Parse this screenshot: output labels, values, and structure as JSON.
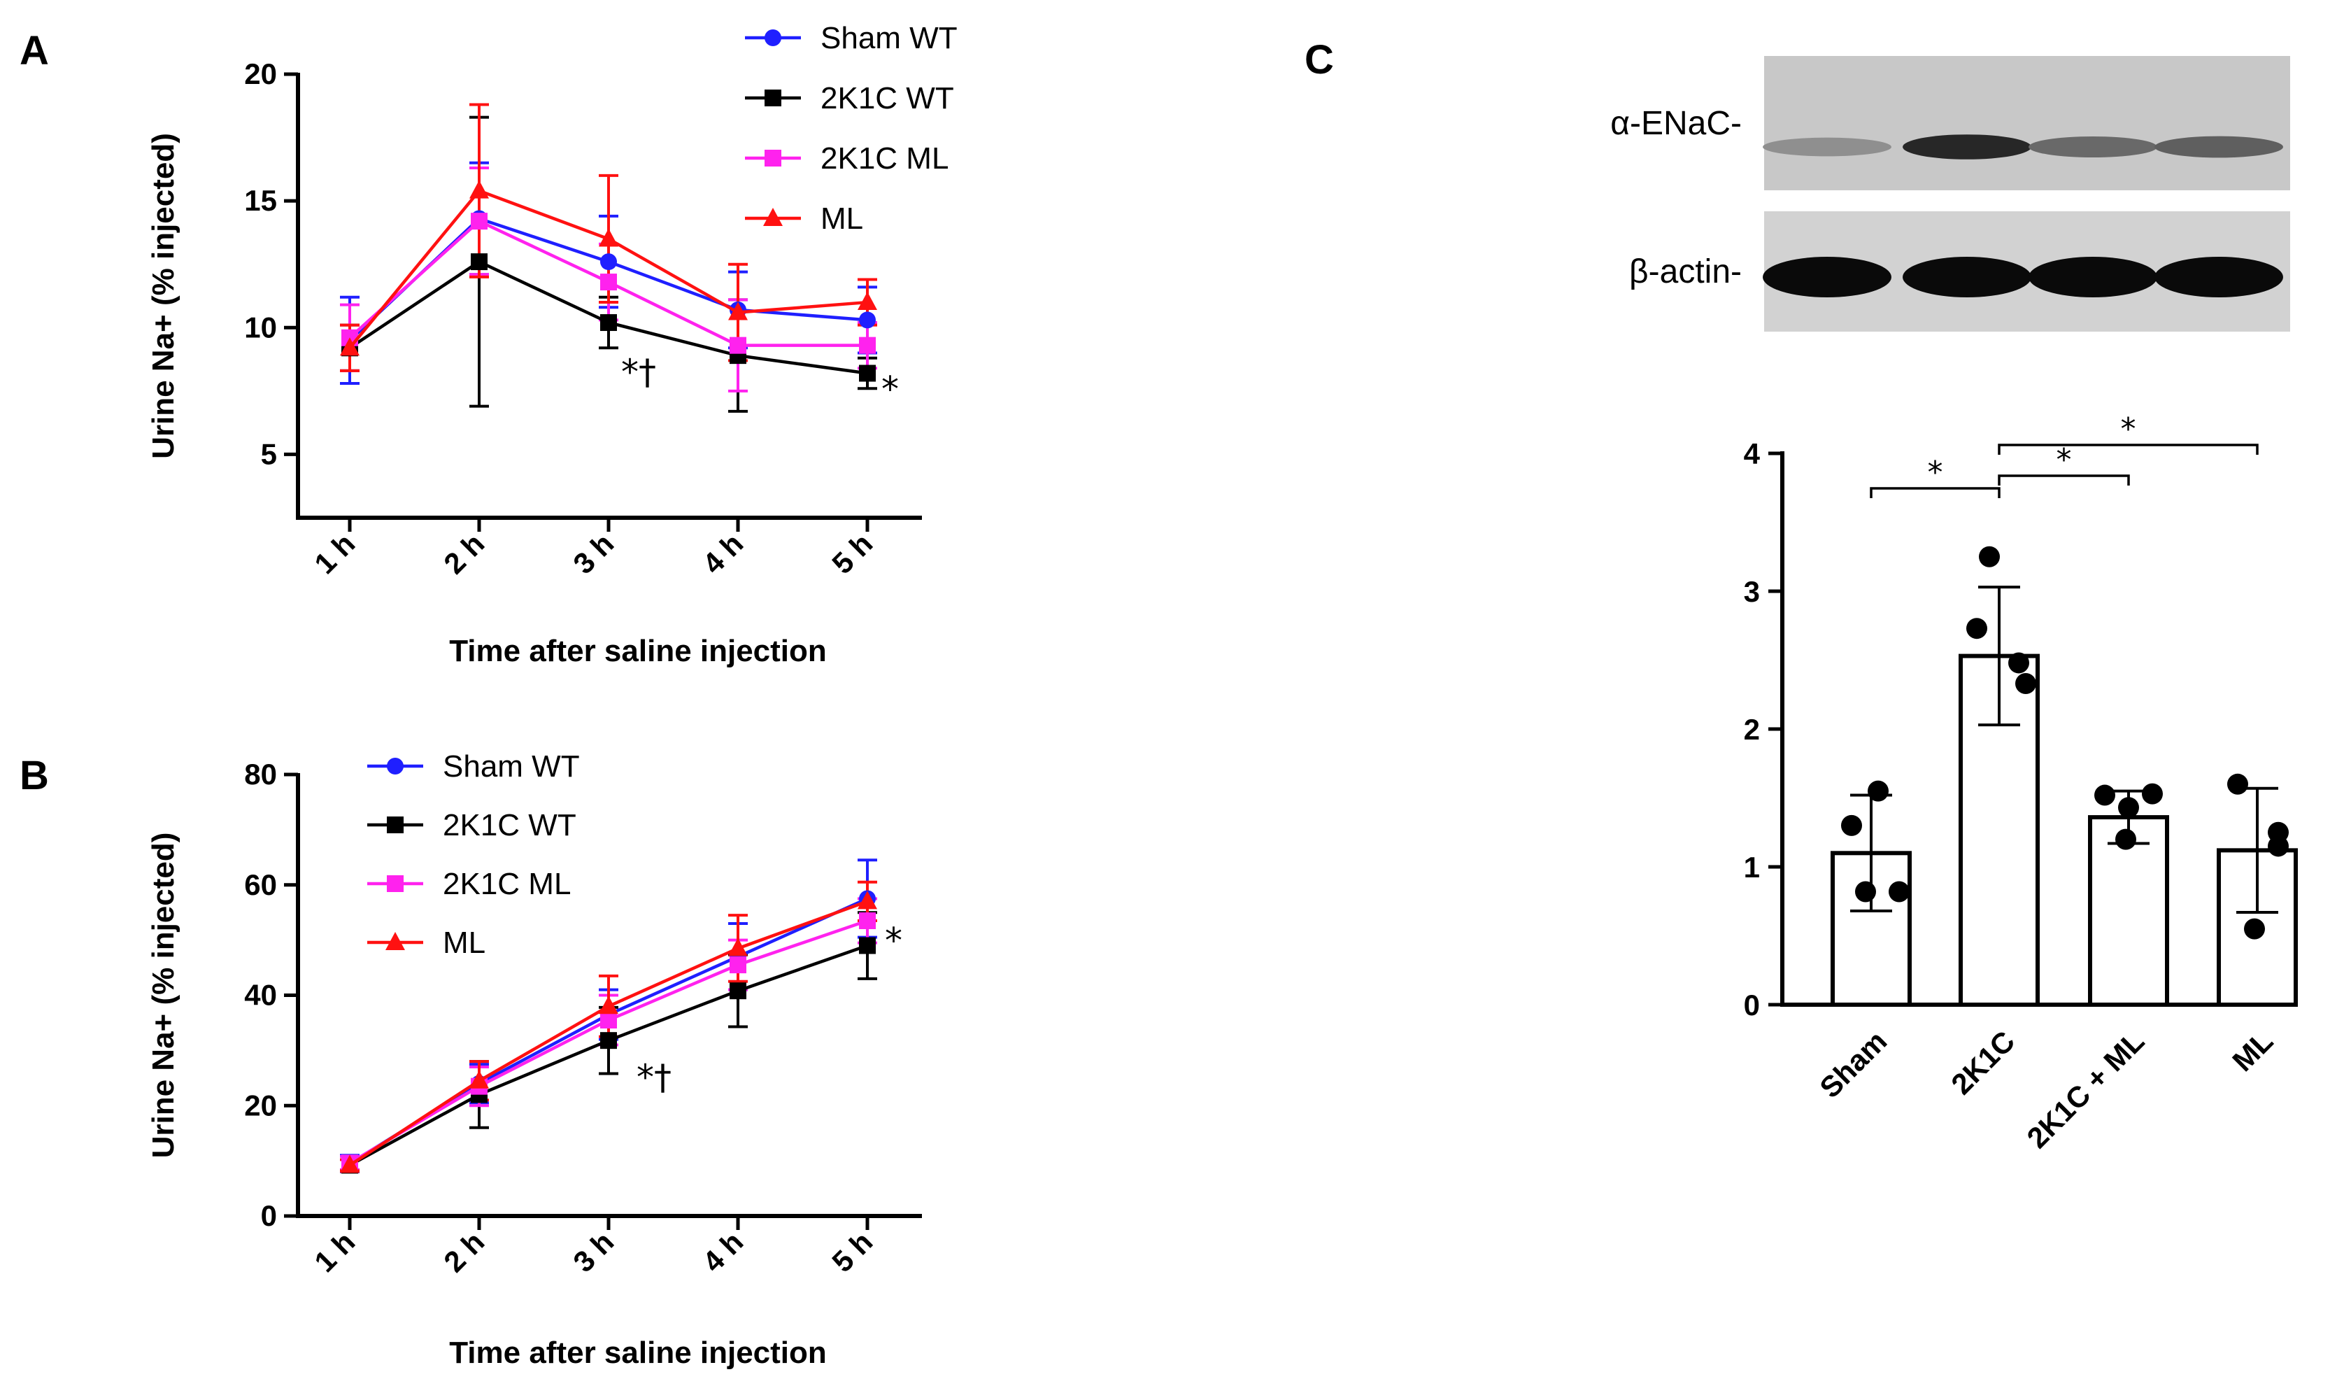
{
  "panels": [
    {
      "letter": "A"
    },
    {
      "letter": "B"
    },
    {
      "letter": "C"
    }
  ],
  "colors": {
    "sham_wt": "#1f1fff",
    "k1c_wt": "#000000",
    "k1c_ml": "#ff22ee",
    "ml": "#ff1111"
  },
  "chart_data": [
    {
      "id": "A",
      "type": "line",
      "xlabel": "Time after saline injection",
      "ylabel": "Urine Na+ (% injected)",
      "categories": [
        "1 h",
        "2 h",
        "3 h",
        "4 h",
        "5 h"
      ],
      "ylim": [
        2.5,
        20
      ],
      "yticks": [
        5,
        10,
        15,
        20
      ],
      "series": [
        {
          "name": "Sham WT",
          "marker": "circle",
          "color": "#1f1fff",
          "values": [
            9.5,
            14.3,
            12.6,
            10.7,
            10.3
          ],
          "error": [
            1.7,
            2.2,
            1.8,
            1.5,
            1.3
          ]
        },
        {
          "name": "2K1C WT",
          "marker": "square",
          "color": "#000000",
          "values": [
            9.2,
            12.6,
            10.2,
            8.9,
            8.2
          ],
          "error": [
            0.9,
            5.7,
            1.0,
            2.2,
            0.6
          ]
        },
        {
          "name": "2K1C ML",
          "marker": "square",
          "color": "#ff22ee",
          "values": [
            9.6,
            14.2,
            11.8,
            9.3,
            9.3
          ],
          "error": [
            1.3,
            2.1,
            1.5,
            1.8,
            0.9
          ]
        },
        {
          "name": "ML",
          "marker": "triangle",
          "color": "#ff1111",
          "values": [
            9.2,
            15.4,
            13.5,
            10.6,
            11.0
          ],
          "error": [
            0.9,
            3.4,
            2.5,
            1.9,
            0.9
          ]
        }
      ],
      "annotations": [
        {
          "text": "*†",
          "category": "3 h"
        },
        {
          "text": "*",
          "category": "5 h"
        }
      ]
    },
    {
      "id": "B",
      "type": "line",
      "xlabel": "Time after saline injection",
      "ylabel": "Urine Na+ (% injected)",
      "categories": [
        "1 h",
        "2 h",
        "3 h",
        "4 h",
        "5 h"
      ],
      "ylim": [
        0,
        80
      ],
      "yticks": [
        0,
        20,
        40,
        60,
        80
      ],
      "series": [
        {
          "name": "Sham WT",
          "marker": "circle",
          "color": "#1f1fff",
          "values": [
            9.5,
            24.0,
            36.5,
            47.0,
            57.5
          ],
          "error": [
            1.5,
            3.5,
            4.5,
            6.0,
            7.0
          ]
        },
        {
          "name": "2K1C WT",
          "marker": "square",
          "color": "#000000",
          "values": [
            9.2,
            22.0,
            31.8,
            40.8,
            49.0
          ],
          "error": [
            1.0,
            6.0,
            6.0,
            6.5,
            6.0
          ]
        },
        {
          "name": "2K1C ML",
          "marker": "square",
          "color": "#ff22ee",
          "values": [
            9.6,
            23.5,
            35.5,
            45.5,
            53.5
          ],
          "error": [
            1.2,
            3.5,
            4.5,
            4.5,
            4.0
          ]
        },
        {
          "name": "ML",
          "marker": "triangle",
          "color": "#ff1111",
          "values": [
            9.2,
            24.5,
            38.0,
            48.5,
            57.0
          ],
          "error": [
            1.0,
            3.5,
            5.5,
            6.0,
            3.5
          ]
        }
      ],
      "annotations": [
        {
          "text": "*†",
          "category": "3 h"
        },
        {
          "text": "*",
          "category": "5 h"
        }
      ]
    },
    {
      "id": "C",
      "type": "bar",
      "xlabel": "",
      "ylabel": "",
      "categories": [
        "Sham",
        "2K1C",
        "2K1C + ML",
        "ML"
      ],
      "ylim": [
        0,
        4
      ],
      "yticks": [
        0,
        1,
        2,
        3,
        4
      ],
      "values": [
        1.1,
        2.53,
        1.36,
        1.12
      ],
      "error": [
        0.42,
        0.5,
        0.19,
        0.45
      ],
      "points": [
        [
          1.55,
          1.3,
          0.82,
          0.82
        ],
        [
          3.25,
          2.73,
          2.48,
          2.33
        ],
        [
          1.53,
          1.52,
          1.43,
          1.2
        ],
        [
          1.6,
          1.25,
          1.15,
          0.55
        ]
      ],
      "significance": [
        {
          "from": "Sham",
          "to": "2K1C",
          "label": "*"
        },
        {
          "from": "2K1C",
          "to": "2K1C + ML",
          "label": "*"
        },
        {
          "from": "2K1C",
          "to": "ML",
          "label": "*"
        }
      ]
    }
  ],
  "blot": {
    "rows": [
      {
        "label": "α-ENaC-",
        "intensities": [
          0.3,
          0.85,
          0.5,
          0.55
        ]
      },
      {
        "label": "β-actin-",
        "intensities": [
          1,
          1,
          1,
          1
        ]
      }
    ]
  }
}
